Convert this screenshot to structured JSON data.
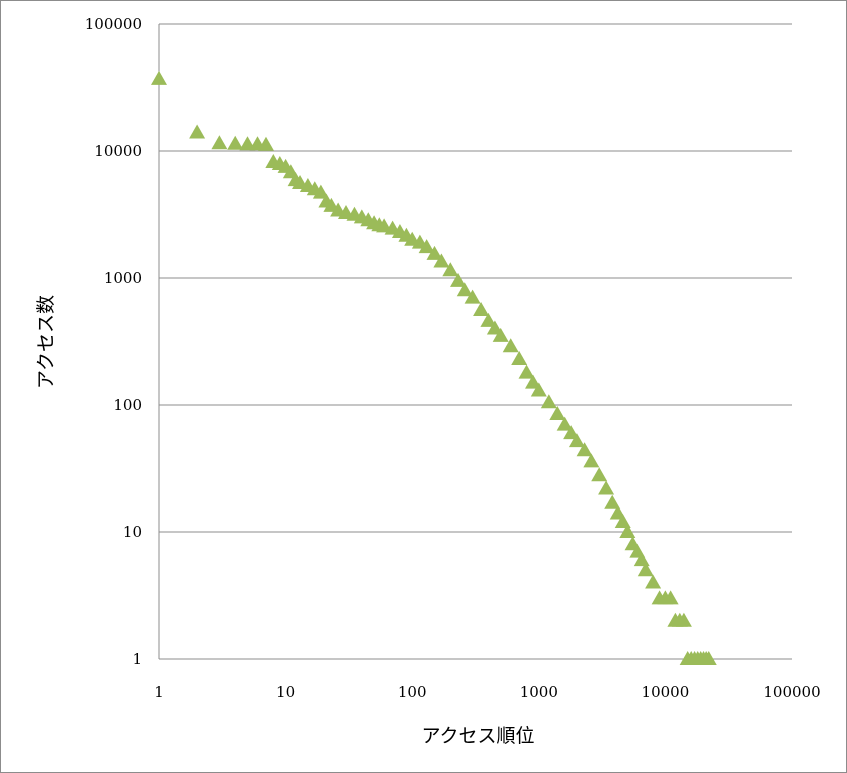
{
  "chart_data": {
    "type": "scatter",
    "title": "",
    "xlabel": "アクセス順位",
    "ylabel": "アクセス数",
    "x_scale": "log",
    "y_scale": "log",
    "xlim": [
      1,
      100000
    ],
    "ylim": [
      1,
      100000
    ],
    "x_tick_labels": [
      "1",
      "10",
      "100",
      "1000",
      "10000",
      "100000"
    ],
    "y_tick_labels": [
      "100000",
      "10000",
      "1000",
      "100",
      "10",
      "1"
    ],
    "x_ticks": [
      1,
      10,
      100,
      1000,
      10000,
      100000
    ],
    "y_ticks": [
      100000,
      10000,
      1000,
      100,
      10,
      1
    ],
    "grid": "horizontal",
    "legend": "none",
    "marker": "triangle",
    "marker_color": "#9bbb59",
    "series": [
      {
        "points": [
          [
            1,
            37000
          ],
          [
            2,
            14000
          ],
          [
            3,
            11500
          ],
          [
            4,
            11400
          ],
          [
            5,
            11300
          ],
          [
            6,
            11300
          ],
          [
            7,
            11200
          ],
          [
            8,
            8200
          ],
          [
            9,
            7900
          ],
          [
            10,
            7500
          ],
          [
            11,
            6800
          ],
          [
            12,
            5900
          ],
          [
            13,
            5600
          ],
          [
            15,
            5300
          ],
          [
            17,
            5000
          ],
          [
            19,
            4700
          ],
          [
            21,
            4000
          ],
          [
            23,
            3700
          ],
          [
            26,
            3400
          ],
          [
            30,
            3250
          ],
          [
            35,
            3150
          ],
          [
            40,
            3000
          ],
          [
            45,
            2850
          ],
          [
            50,
            2700
          ],
          [
            55,
            2600
          ],
          [
            60,
            2550
          ],
          [
            70,
            2450
          ],
          [
            80,
            2300
          ],
          [
            90,
            2150
          ],
          [
            100,
            2000
          ],
          [
            115,
            1900
          ],
          [
            130,
            1750
          ],
          [
            150,
            1550
          ],
          [
            170,
            1350
          ],
          [
            200,
            1150
          ],
          [
            230,
            950
          ],
          [
            260,
            800
          ],
          [
            300,
            700
          ],
          [
            350,
            560
          ],
          [
            400,
            460
          ],
          [
            450,
            400
          ],
          [
            500,
            350
          ],
          [
            600,
            290
          ],
          [
            700,
            230
          ],
          [
            800,
            180
          ],
          [
            900,
            150
          ],
          [
            1000,
            130
          ],
          [
            1200,
            105
          ],
          [
            1400,
            85
          ],
          [
            1600,
            70
          ],
          [
            1800,
            60
          ],
          [
            2000,
            52
          ],
          [
            2300,
            44
          ],
          [
            2600,
            36
          ],
          [
            3000,
            28
          ],
          [
            3400,
            22
          ],
          [
            3800,
            17
          ],
          [
            4200,
            14
          ],
          [
            4600,
            12
          ],
          [
            5000,
            10
          ],
          [
            5500,
            8
          ],
          [
            6000,
            7
          ],
          [
            6500,
            6
          ],
          [
            7000,
            5
          ],
          [
            8000,
            4
          ],
          [
            9000,
            3
          ],
          [
            10000,
            3
          ],
          [
            11000,
            3
          ],
          [
            12000,
            2
          ],
          [
            13000,
            2
          ],
          [
            14000,
            2
          ],
          [
            15000,
            1
          ],
          [
            16000,
            1
          ],
          [
            17000,
            1
          ],
          [
            18000,
            1
          ],
          [
            19000,
            1
          ],
          [
            20000,
            1
          ],
          [
            21000,
            1
          ],
          [
            22000,
            1
          ]
        ]
      }
    ]
  }
}
